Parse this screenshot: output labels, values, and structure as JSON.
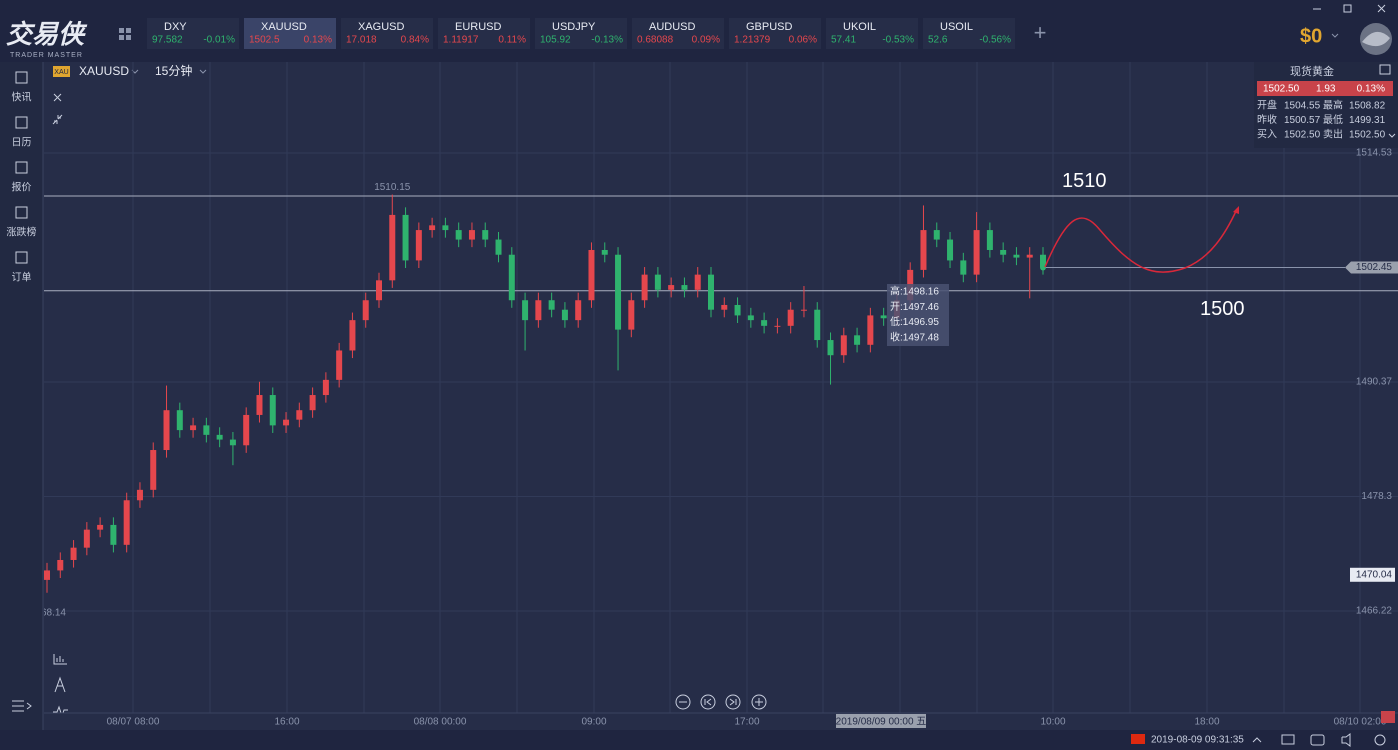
{
  "app": {
    "logo": "交易侠",
    "logo_sub": "TRADER MASTER",
    "balance": "$0"
  },
  "tickers": [
    {
      "name": "DXY",
      "price": "97.582",
      "change": "-0.01%",
      "color": "#2fb36e"
    },
    {
      "name": "XAUUSD",
      "price": "1502.5",
      "change": "0.13%",
      "color": "#e5474d"
    },
    {
      "name": "XAGUSD",
      "price": "17.018",
      "change": "0.84%",
      "color": "#e5474d"
    },
    {
      "name": "EURUSD",
      "price": "1.11917",
      "change": "0.11%",
      "color": "#e5474d"
    },
    {
      "name": "USDJPY",
      "price": "105.92",
      "change": "-0.13%",
      "color": "#2fb36e"
    },
    {
      "name": "AUDUSD",
      "price": "0.68088",
      "change": "0.09%",
      "color": "#e5474d"
    },
    {
      "name": "GBPUSD",
      "price": "1.21379",
      "change": "0.06%",
      "color": "#e5474d"
    },
    {
      "name": "UKOIL",
      "price": "57.41",
      "change": "-0.53%",
      "color": "#2fb36e"
    },
    {
      "name": "USOIL",
      "price": "52.6",
      "change": "-0.56%",
      "color": "#2fb36e"
    }
  ],
  "sidebar": [
    "快讯",
    "日历",
    "报价",
    "涨跌榜",
    "订单"
  ],
  "chart_header": {
    "symbol": "XAUUSD",
    "interval": "15分钟",
    "badge": "XAU"
  },
  "quote_panel": {
    "title": "现货黄金",
    "price": "1502.50",
    "change": "1.93",
    "change_pct": "0.13%",
    "rows": [
      [
        "开盘",
        "1504.55",
        "最高",
        "1508.82"
      ],
      [
        "昨收",
        "1500.57",
        "最低",
        "1499.31"
      ],
      [
        "买入",
        "1502.50",
        "卖出",
        "1502.50"
      ]
    ]
  },
  "tooltip": [
    "高:1498.16",
    "开:1497.46",
    "低:1496.95",
    "收:1497.48"
  ],
  "status": {
    "datetime": "2019-08-09 09:31:35"
  },
  "chart_data": {
    "type": "candlestick",
    "open": [
      1469.5,
      1470.5,
      1471.6,
      1472.9,
      1474.8,
      1475.3,
      1473.2,
      1477.9,
      1479,
      1483.2,
      1487.4,
      1485.3,
      1485.8,
      1484.8,
      1484.3,
      1483.7,
      1486.9,
      1489,
      1485.8,
      1486.4,
      1487.4,
      1489,
      1490.6,
      1493.7,
      1496.9,
      1499,
      1501.1,
      1508,
      1503.2,
      1506.4,
      1506.9,
      1506.4,
      1505.4,
      1506.4,
      1505.4,
      1503.8,
      1499,
      1496.9,
      1499,
      1498,
      1496.9,
      1499,
      1504.3,
      1503.8,
      1495.9,
      1499,
      1501.7,
      1500.1,
      1500.6,
      1500.1,
      1501.7,
      1498,
      1498.5,
      1497.4,
      1496.9,
      1496.3,
      1496.3,
      1498,
      1498,
      1494.8,
      1493.2,
      1495.3,
      1494.3,
      1497.4,
      1497.1,
      1499,
      1502.2,
      1506.4,
      1505.4,
      1503.2,
      1501.7,
      1506.4,
      1504.3,
      1503.8,
      1503.5,
      1503.8
    ],
    "high": [
      1471.3,
      1472.4,
      1473.7,
      1475.6,
      1476.1,
      1476.1,
      1478.7,
      1479.8,
      1484,
      1490,
      1488.2,
      1486.6,
      1486.6,
      1485.6,
      1485.1,
      1487.7,
      1490.4,
      1489.8,
      1487.2,
      1488.2,
      1489.8,
      1491.4,
      1494.5,
      1497.7,
      1499.8,
      1501.9,
      1510.15,
      1508.8,
      1507.2,
      1507.7,
      1507.7,
      1507.2,
      1507.2,
      1507.2,
      1506.2,
      1504.6,
      1499.8,
      1499.8,
      1499.8,
      1498.8,
      1499.8,
      1505.1,
      1505.1,
      1504.6,
      1499.8,
      1502.5,
      1502.5,
      1501.4,
      1501.4,
      1502.5,
      1502.5,
      1499.3,
      1499.3,
      1498.2,
      1497.7,
      1497.1,
      1498.8,
      1500.5,
      1498.8,
      1495.6,
      1496.1,
      1496.1,
      1498.2,
      1498.2,
      1499.8,
      1503,
      1509,
      1507.2,
      1506.2,
      1504,
      1508.3,
      1507.2,
      1505.1,
      1504.6,
      1504.6,
      1504.6
    ],
    "low": [
      1468.14,
      1469.7,
      1470.8,
      1472.1,
      1474,
      1472.4,
      1472.4,
      1477.1,
      1478.2,
      1482.4,
      1484.5,
      1484.5,
      1484,
      1483.5,
      1481.6,
      1482.9,
      1486.1,
      1485,
      1485,
      1485.6,
      1486.6,
      1488.2,
      1489.8,
      1492.9,
      1496.1,
      1498.2,
      1500.3,
      1502.4,
      1502.4,
      1505.6,
      1505.6,
      1504.6,
      1504.6,
      1504.6,
      1503,
      1498.2,
      1493.7,
      1496.1,
      1497.2,
      1496.1,
      1496.1,
      1498.2,
      1503,
      1491.6,
      1495.1,
      1498.2,
      1499.3,
      1499.3,
      1499.3,
      1499.3,
      1497.2,
      1497.2,
      1496.6,
      1496.1,
      1495.5,
      1495.5,
      1495.5,
      1497.2,
      1494,
      1490.1,
      1492.4,
      1493.5,
      1493.5,
      1496.3,
      1496.3,
      1498.2,
      1501.4,
      1504.6,
      1502.4,
      1500.9,
      1500.9,
      1503.5,
      1503,
      1502.7,
      1499.2,
      1501.7
    ],
    "close": [
      1470.5,
      1471.6,
      1472.9,
      1474.8,
      1475.3,
      1473.2,
      1477.9,
      1479,
      1483.2,
      1487.4,
      1485.3,
      1485.8,
      1484.8,
      1484.3,
      1483.7,
      1486.9,
      1489,
      1485.8,
      1486.4,
      1487.4,
      1489,
      1490.6,
      1493.7,
      1496.9,
      1499,
      1501.1,
      1508,
      1503.2,
      1506.4,
      1506.9,
      1506.4,
      1505.4,
      1506.4,
      1505.4,
      1503.8,
      1499,
      1496.9,
      1499,
      1498,
      1496.9,
      1499,
      1504.3,
      1503.8,
      1495.9,
      1499,
      1501.7,
      1500.1,
      1500.6,
      1500.1,
      1501.7,
      1498,
      1498.5,
      1497.4,
      1496.9,
      1496.3,
      1496.3,
      1498,
      1498,
      1494.8,
      1493.2,
      1495.3,
      1494.3,
      1497.4,
      1497.1,
      1499,
      1502.2,
      1506.4,
      1505.4,
      1503.2,
      1501.7,
      1506.4,
      1504.3,
      1503.8,
      1503.5,
      1503.8,
      1502.5
    ],
    "up_color": "#e5474d",
    "down_color": "#2fb36e",
    "ylim": [
      1455.46,
      1524.13
    ],
    "yticks": [
      1514.53,
      1490.37,
      1478.3,
      1466.22
    ],
    "last_price": 1502.45,
    "crosshair_price": 1470.04,
    "crosshair_time": "2019/08/09 00:00 五",
    "hlines": [
      1510,
      1500
    ],
    "xtick_labels": [
      "08/07 08:00",
      "16:00",
      "08/08 00:00",
      "09:00",
      "17:00",
      "10:00",
      "18:00",
      "08/10 02:00"
    ]
  }
}
